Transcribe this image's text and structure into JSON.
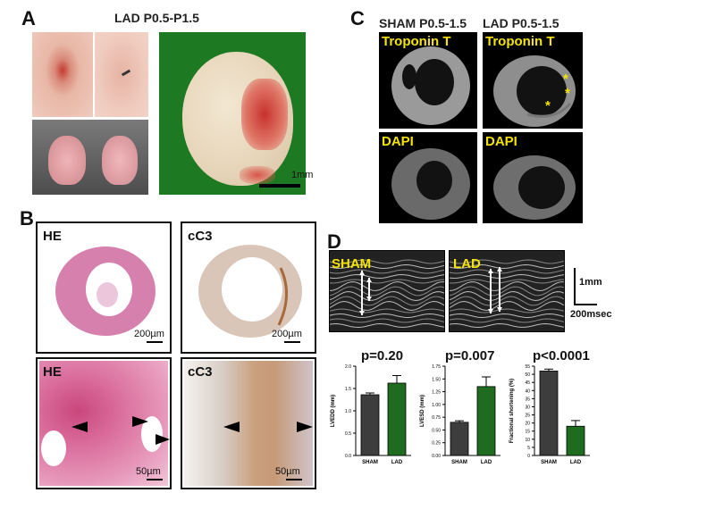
{
  "panel_a": {
    "label": "A",
    "title": "LAD P0.5-P1.5",
    "scale_bar": "1mm"
  },
  "panel_b": {
    "label": "B",
    "tiles": [
      {
        "stain": "HE",
        "scale": "200µm"
      },
      {
        "stain": "cC3",
        "scale": "200µm"
      },
      {
        "stain": "HE",
        "scale": "50µm"
      },
      {
        "stain": "cC3",
        "scale": "50µm"
      }
    ]
  },
  "panel_c": {
    "label": "C",
    "col_sham": "SHAM P0.5-1.5",
    "col_lad": "LAD P0.5-1.5",
    "stain_top": "Troponin T",
    "stain_bottom": "DAPI",
    "asterisk": "*"
  },
  "panel_d": {
    "label": "D",
    "echo_sham": "SHAM",
    "echo_lad": "LAD",
    "scale_v": "1mm",
    "scale_h": "200msec",
    "colors": {
      "sham": "#3d3d3d",
      "lad": "#1f6b1f"
    }
  },
  "chart_data": [
    {
      "type": "bar",
      "title": "p=0.20",
      "ylabel": "LVEDD (mm)",
      "categories": [
        "SHAM",
        "LAD"
      ],
      "values": [
        1.36,
        1.62
      ],
      "errors": [
        0.04,
        0.17
      ],
      "ylim": [
        0,
        2.0
      ],
      "ticks": [
        "0.0",
        "0.5",
        "1.0",
        "1.5",
        "2.0"
      ]
    },
    {
      "type": "bar",
      "title": "p=0.007",
      "ylabel": "LVESD (mm)",
      "categories": [
        "SHAM",
        "LAD"
      ],
      "values": [
        0.65,
        1.35
      ],
      "errors": [
        0.03,
        0.19
      ],
      "ylim": [
        0,
        1.75
      ],
      "ticks": [
        "0.00",
        "0.25",
        "0.50",
        "0.75",
        "1.00",
        "1.25",
        "1.50",
        "1.75"
      ]
    },
    {
      "type": "bar",
      "title": "p<0.0001",
      "ylabel": "Fractional shortening (%)",
      "categories": [
        "SHAM",
        "LAD"
      ],
      "values": [
        52,
        18
      ],
      "errors": [
        1.2,
        3.5
      ],
      "ylim": [
        0,
        55
      ],
      "ticks": [
        "0",
        "5",
        "10",
        "15",
        "20",
        "25",
        "30",
        "35",
        "40",
        "45",
        "50",
        "55"
      ]
    }
  ]
}
